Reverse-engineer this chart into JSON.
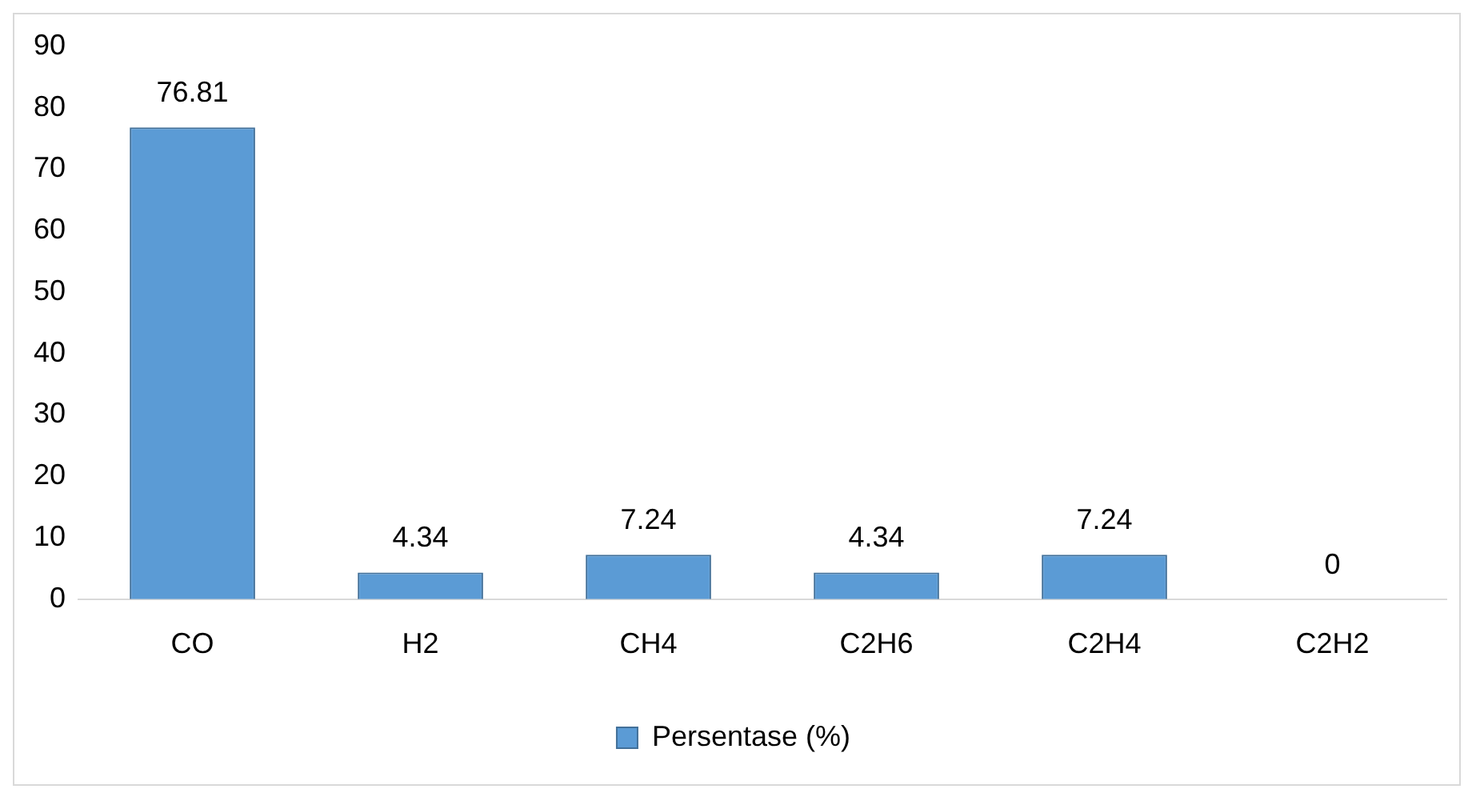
{
  "chart_data": {
    "type": "bar",
    "categories": [
      "CO",
      "H2",
      "CH4",
      "C2H6",
      "C2H4",
      "C2H2"
    ],
    "series": [
      {
        "name": "Persentase (%)",
        "color": "#5b9bd5",
        "values": [
          76.81,
          4.34,
          7.24,
          4.34,
          7.24,
          0
        ]
      }
    ],
    "ylim": [
      0,
      90
    ],
    "yticks": [
      0,
      10,
      20,
      30,
      40,
      50,
      60,
      70,
      80,
      90
    ],
    "grid": false,
    "legend": "bottom",
    "data_labels": true
  }
}
